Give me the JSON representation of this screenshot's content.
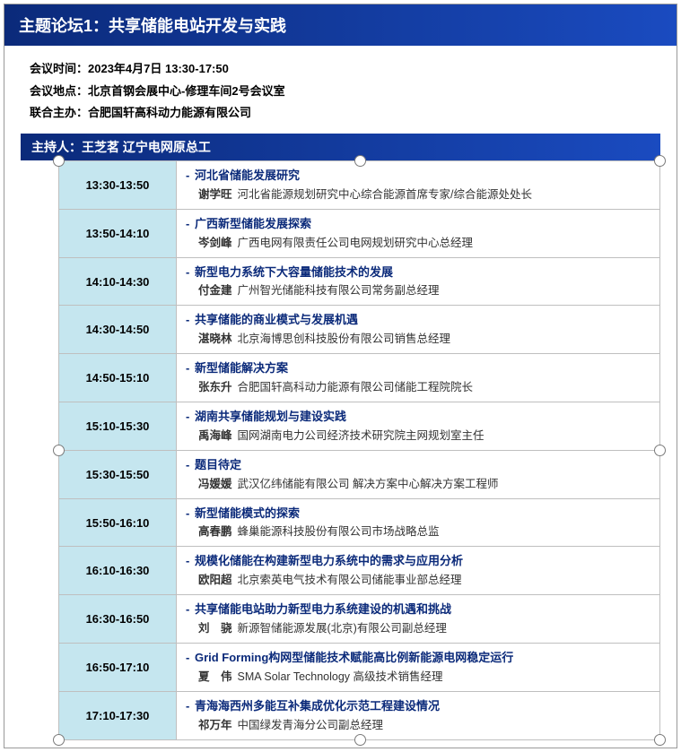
{
  "header": {
    "title": "主题论坛1：共享储能电站开发与实践"
  },
  "meta": {
    "time_label": "会议时间：",
    "time_value": "2023年4月7日 13:30-17:50",
    "venue_label": "会议地点：",
    "venue_value": "北京首钢会展中心-修理车间2号会议室",
    "cohost_label": "联合主办：",
    "cohost_value": "合肥国轩高科动力能源有限公司"
  },
  "host": {
    "label": "主持人：",
    "name": "王芝茗",
    "affiliation": "辽宁电网原总工"
  },
  "colors": {
    "header_grad_from": "#0b2a7a",
    "header_grad_to": "#1a4bc0",
    "time_cell_bg": "#c5e6ef",
    "title_color": "#0b2a7a",
    "border_color": "#bfbfbf"
  },
  "schedule": [
    {
      "time": "13:30-13:50",
      "title": "河北省储能发展研究",
      "speaker": "谢学旺",
      "affiliation": "河北省能源规划研究中心综合能源首席专家/综合能源处处长"
    },
    {
      "time": "13:50-14:10",
      "title": "广西新型储能发展探索",
      "speaker": "岑剑峰",
      "affiliation": "广西电网有限责任公司电网规划研究中心总经理"
    },
    {
      "time": "14:10-14:30",
      "title": "新型电力系统下大容量储能技术的发展",
      "speaker": "付金建",
      "affiliation": "广州智光储能科技有限公司常务副总经理"
    },
    {
      "time": "14:30-14:50",
      "title": "共享储能的商业模式与发展机遇",
      "speaker": "湛晓林",
      "affiliation": "北京海博思创科技股份有限公司销售总经理"
    },
    {
      "time": "14:50-15:10",
      "title": "新型储能解决方案",
      "speaker": "张东升",
      "affiliation": "合肥国轩高科动力能源有限公司储能工程院院长"
    },
    {
      "time": "15:10-15:30",
      "title": "湖南共享储能规划与建设实践",
      "speaker": "禹海峰",
      "affiliation": "国网湖南电力公司经济技术研究院主网规划室主任"
    },
    {
      "time": "15:30-15:50",
      "title": "题目待定",
      "speaker": "冯媛媛",
      "affiliation": "武汉亿纬储能有限公司 解决方案中心解决方案工程师"
    },
    {
      "time": "15:50-16:10",
      "title": "新型储能模式的探索",
      "speaker": "高春鹏",
      "affiliation": "蜂巢能源科技股份有限公司市场战略总监"
    },
    {
      "time": "16:10-16:30",
      "title": "规模化储能在构建新型电力系统中的需求与应用分析",
      "speaker": "欧阳超",
      "affiliation": "北京索英电气技术有限公司储能事业部总经理"
    },
    {
      "time": "16:30-16:50",
      "title": "共享储能电站助力新型电力系统建设的机遇和挑战",
      "speaker": "刘　骁",
      "affiliation": "新源智储能源发展(北京)有限公司副总经理"
    },
    {
      "time": "16:50-17:10",
      "title": "Grid Forming构网型储能技术赋能高比例新能源电网稳定运行",
      "speaker": "夏　伟",
      "affiliation": "SMA Solar Technology 高级技术销售经理"
    },
    {
      "time": "17:10-17:30",
      "title": "青海海西州多能互补集成优化示范工程建设情况",
      "speaker": "祁万年",
      "affiliation": "中国绿发青海分公司副总经理"
    }
  ]
}
